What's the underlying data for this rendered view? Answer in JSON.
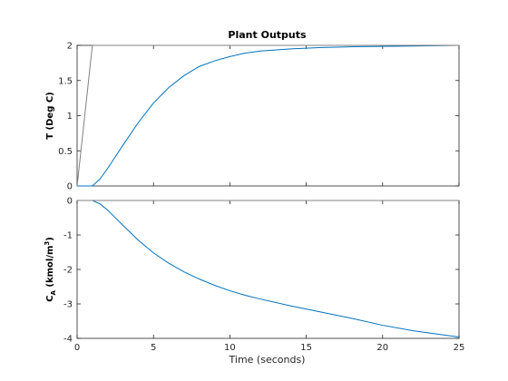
{
  "figure_background": "#ffffff",
  "chart_data": [
    {
      "type": "line",
      "title": "Plant Outputs",
      "xlabel": "",
      "ylabel_main": "T (Deg C)",
      "ylabel_sub": "",
      "ylabel_tail": "",
      "xlim": [
        0,
        25
      ],
      "ylim": [
        0,
        2
      ],
      "xticks": [
        0,
        5,
        10,
        15,
        20,
        25
      ],
      "yticks": [
        0,
        0.5,
        1,
        1.5,
        2
      ],
      "ytick_labels": [
        "0",
        "0.5",
        "1",
        "1.5",
        "2"
      ],
      "show_xtick_labels": false,
      "grid": false,
      "series": [
        {
          "color": "#0072bd",
          "x": [
            0,
            1,
            1.5,
            2,
            3,
            4,
            5,
            6,
            7,
            8,
            9,
            10,
            11,
            12,
            14,
            16,
            18,
            20,
            22,
            25
          ],
          "y": [
            0,
            0,
            0.1,
            0.25,
            0.58,
            0.9,
            1.18,
            1.4,
            1.57,
            1.7,
            1.78,
            1.84,
            1.89,
            1.92,
            1.95,
            1.97,
            1.98,
            1.985,
            1.99,
            2.0
          ]
        },
        {
          "color": "#808080",
          "x": [
            0,
            1,
            25
          ],
          "y": [
            0,
            2,
            2
          ]
        }
      ]
    },
    {
      "type": "line",
      "title": "",
      "xlabel": "Time (seconds)",
      "ylabel_main": "C",
      "ylabel_sub": "A",
      "ylabel_tail": " (kmol/m",
      "ylabel_sup": "3",
      "ylabel_end": ")",
      "xlim": [
        0,
        25
      ],
      "ylim": [
        -4,
        0
      ],
      "xticks": [
        0,
        5,
        10,
        15,
        20,
        25
      ],
      "xtick_labels": [
        "0",
        "5",
        "10",
        "15",
        "20",
        "25"
      ],
      "yticks": [
        -4,
        -3,
        -2,
        -1,
        0
      ],
      "ytick_labels": [
        "-4",
        "-3",
        "-2",
        "-1",
        "0"
      ],
      "show_xtick_labels": true,
      "grid": false,
      "series": [
        {
          "color": "#0072bd",
          "x": [
            0,
            1,
            1.5,
            2,
            3,
            4,
            5,
            6,
            7,
            8,
            9,
            10,
            11,
            12,
            14,
            16,
            18,
            20,
            22,
            24,
            25
          ],
          "y": [
            0,
            0,
            -0.1,
            -0.28,
            -0.72,
            -1.15,
            -1.52,
            -1.82,
            -2.07,
            -2.28,
            -2.46,
            -2.62,
            -2.75,
            -2.86,
            -3.06,
            -3.24,
            -3.42,
            -3.62,
            -3.78,
            -3.9,
            -3.96
          ]
        },
        {
          "color": "#808080",
          "x": [
            0,
            25
          ],
          "y": [
            0,
            0
          ]
        }
      ]
    }
  ]
}
